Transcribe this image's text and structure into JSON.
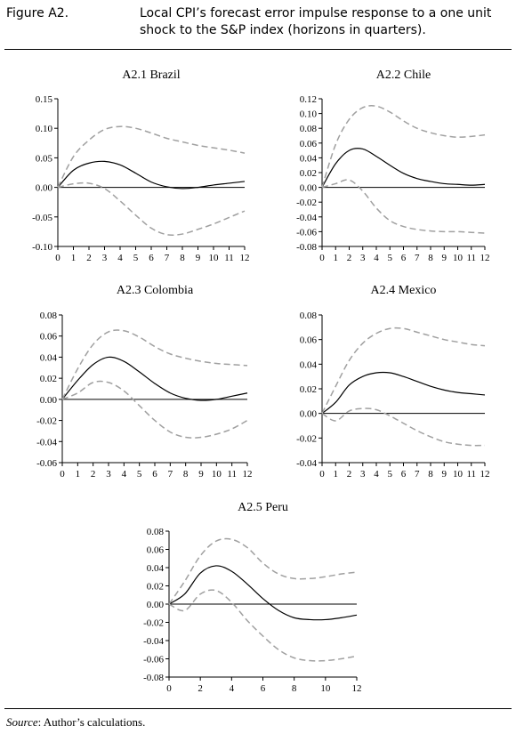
{
  "figure": {
    "label": "Figure A2.",
    "caption": "Local CPI’s forecast error impulse response to a one unit shock to the S&P index (horizons in quarters).",
    "source_label": "Source",
    "source_text": ": Author’s calculations."
  },
  "colors": {
    "response": "#000000",
    "band": "#a0a0a0",
    "axis": "#000000"
  },
  "chart_data": [
    {
      "type": "line",
      "title": "A2.1 Brazil",
      "xlabel": "",
      "ylabel": "",
      "x_ticks": [
        "0",
        "1",
        "2",
        "3",
        "4",
        "5",
        "6",
        "7",
        "8",
        "9",
        "10",
        "11",
        "12"
      ],
      "y_ticks": [
        "0.15",
        "0.10",
        "0.05",
        "0.00",
        "-0.05",
        "-0.10"
      ],
      "xlim": [
        0,
        12
      ],
      "ylim": [
        -0.1,
        0.15
      ],
      "x": [
        0,
        1,
        2,
        3,
        4,
        5,
        6,
        7,
        8,
        9,
        10,
        11,
        12
      ],
      "series": [
        {
          "role": "response",
          "values": [
            0,
            0.029,
            0.041,
            0.044,
            0.038,
            0.024,
            0.009,
            0.001,
            -0.002,
            0,
            0.004,
            0.007,
            0.01
          ]
        },
        {
          "role": "upper band",
          "values": [
            0,
            0.052,
            0.08,
            0.098,
            0.103,
            0.1,
            0.092,
            0.083,
            0.077,
            0.071,
            0.067,
            0.063,
            0.058
          ]
        },
        {
          "role": "lower band",
          "values": [
            0,
            0.006,
            0.007,
            -0.002,
            -0.023,
            -0.047,
            -0.069,
            -0.08,
            -0.079,
            -0.071,
            -0.062,
            -0.051,
            -0.04
          ]
        }
      ]
    },
    {
      "type": "line",
      "title": "A2.2 Chile",
      "xlabel": "",
      "ylabel": "",
      "x_ticks": [
        "0",
        "1",
        "2",
        "3",
        "4",
        "5",
        "6",
        "7",
        "8",
        "9",
        "10",
        "11",
        "12"
      ],
      "y_ticks": [
        "0.12",
        "0.10",
        "0.08",
        "0.06",
        "0.04",
        "0.02",
        "0.00",
        "-0.02",
        "-0.04",
        "-0.06",
        "-0.08"
      ],
      "xlim": [
        0,
        12
      ],
      "ylim": [
        -0.08,
        0.12
      ],
      "x": [
        0,
        1,
        2,
        3,
        4,
        5,
        6,
        7,
        8,
        9,
        10,
        11,
        12
      ],
      "series": [
        {
          "role": "response",
          "values": [
            0,
            0.032,
            0.05,
            0.052,
            0.042,
            0.03,
            0.019,
            0.012,
            0.008,
            0.005,
            0.004,
            0.003,
            0.004
          ]
        },
        {
          "role": "upper band",
          "values": [
            0,
            0.058,
            0.092,
            0.108,
            0.11,
            0.102,
            0.09,
            0.08,
            0.074,
            0.07,
            0.068,
            0.069,
            0.071
          ]
        },
        {
          "role": "lower band",
          "values": [
            0,
            0.005,
            0.01,
            -0.005,
            -0.028,
            -0.045,
            -0.053,
            -0.057,
            -0.059,
            -0.06,
            -0.06,
            -0.061,
            -0.062
          ]
        }
      ]
    },
    {
      "type": "line",
      "title": "A2.3 Colombia",
      "xlabel": "",
      "ylabel": "",
      "x_ticks": [
        "0",
        "1",
        "2",
        "3",
        "4",
        "5",
        "6",
        "7",
        "8",
        "9",
        "10",
        "11",
        "12"
      ],
      "y_ticks": [
        "0.08",
        "0.06",
        "0.04",
        "0.02",
        "0.00",
        "-0.02",
        "-0.04",
        "-0.06"
      ],
      "xlim": [
        0,
        12
      ],
      "ylim": [
        -0.06,
        0.08
      ],
      "x": [
        0,
        1,
        2,
        3,
        4,
        5,
        6,
        7,
        8,
        9,
        10,
        11,
        12
      ],
      "series": [
        {
          "role": "response",
          "values": [
            0,
            0.018,
            0.033,
            0.04,
            0.036,
            0.026,
            0.015,
            0.006,
            0.001,
            -0.001,
            0,
            0.003,
            0.006
          ]
        },
        {
          "role": "upper band",
          "values": [
            0,
            0.029,
            0.052,
            0.064,
            0.065,
            0.059,
            0.05,
            0.043,
            0.039,
            0.036,
            0.034,
            0.033,
            0.032
          ]
        },
        {
          "role": "lower band",
          "values": [
            0,
            0.006,
            0.016,
            0.016,
            0.008,
            -0.006,
            -0.02,
            -0.031,
            -0.036,
            -0.036,
            -0.033,
            -0.028,
            -0.02
          ]
        }
      ]
    },
    {
      "type": "line",
      "title": "A2.4 Mexico",
      "xlabel": "",
      "ylabel": "",
      "x_ticks": [
        "0",
        "1",
        "2",
        "3",
        "4",
        "5",
        "6",
        "7",
        "8",
        "9",
        "10",
        "11",
        "12"
      ],
      "y_ticks": [
        "0.08",
        "0.06",
        "0.04",
        "0.02",
        "0.00",
        "-0.02",
        "-0.04"
      ],
      "xlim": [
        0,
        12
      ],
      "ylim": [
        -0.04,
        0.08
      ],
      "x": [
        0,
        1,
        2,
        3,
        4,
        5,
        6,
        7,
        8,
        9,
        10,
        11,
        12
      ],
      "series": [
        {
          "role": "response",
          "values": [
            0,
            0.009,
            0.023,
            0.03,
            0.033,
            0.033,
            0.03,
            0.026,
            0.022,
            0.019,
            0.017,
            0.016,
            0.015
          ]
        },
        {
          "role": "upper band",
          "values": [
            0,
            0.022,
            0.043,
            0.057,
            0.065,
            0.069,
            0.069,
            0.066,
            0.063,
            0.06,
            0.058,
            0.056,
            0.055
          ]
        },
        {
          "role": "lower band",
          "values": [
            0,
            -0.006,
            0.002,
            0.004,
            0.003,
            -0.002,
            -0.008,
            -0.014,
            -0.019,
            -0.023,
            -0.025,
            -0.026,
            -0.026
          ]
        }
      ]
    },
    {
      "type": "line",
      "title": "A2.5 Peru",
      "xlabel": "",
      "ylabel": "",
      "x_ticks": [
        "0",
        "2",
        "4",
        "6",
        "8",
        "10",
        "12"
      ],
      "y_ticks": [
        "0.08",
        "0.06",
        "0.04",
        "0.02",
        "0.00",
        "-0.02",
        "-0.04",
        "-0.06",
        "-0.08"
      ],
      "xlim": [
        0,
        12
      ],
      "ylim": [
        -0.08,
        0.08
      ],
      "x": [
        0,
        1,
        2,
        3,
        4,
        5,
        6,
        7,
        8,
        9,
        10,
        11,
        12
      ],
      "series": [
        {
          "role": "response",
          "values": [
            0,
            0.011,
            0.034,
            0.042,
            0.036,
            0.022,
            0.006,
            -0.007,
            -0.015,
            -0.017,
            -0.017,
            -0.015,
            -0.012
          ]
        },
        {
          "role": "upper band",
          "values": [
            0,
            0.025,
            0.053,
            0.069,
            0.071,
            0.062,
            0.045,
            0.033,
            0.028,
            0.028,
            0.03,
            0.033,
            0.035
          ]
        },
        {
          "role": "lower band",
          "values": [
            0,
            -0.007,
            0.011,
            0.015,
            0.002,
            -0.018,
            -0.035,
            -0.05,
            -0.059,
            -0.062,
            -0.062,
            -0.06,
            -0.057
          ]
        }
      ]
    }
  ]
}
